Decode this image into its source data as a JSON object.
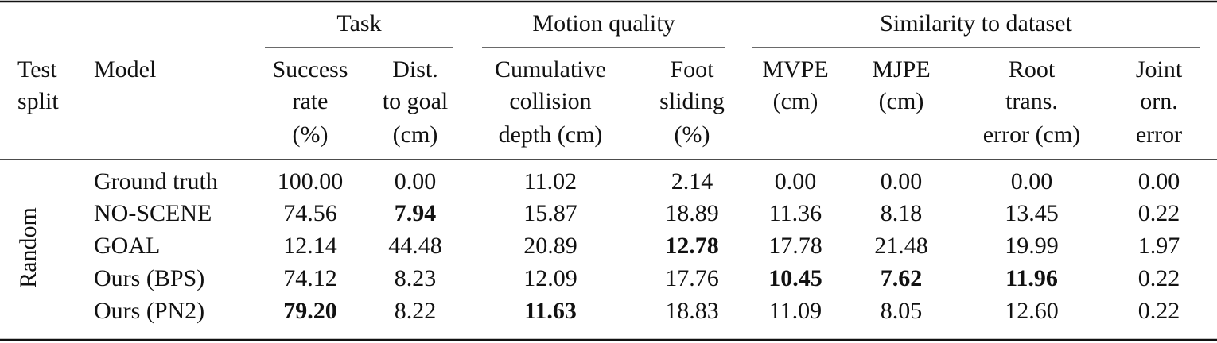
{
  "table": {
    "stub_columns": [
      {
        "lines": [
          "Test",
          "split"
        ]
      },
      {
        "lines": [
          "Model"
        ]
      }
    ],
    "groups": [
      {
        "label": "Task",
        "columns": [
          {
            "lines": [
              "Success",
              "rate",
              "(%)"
            ]
          },
          {
            "lines": [
              "Dist.",
              "to goal",
              "(cm)"
            ]
          }
        ]
      },
      {
        "label": "Motion quality",
        "columns": [
          {
            "lines": [
              "Cumulative",
              "collision",
              "depth (cm)"
            ]
          },
          {
            "lines": [
              "Foot",
              "sliding",
              "(%)"
            ]
          }
        ]
      },
      {
        "label": "Similarity to dataset",
        "columns": [
          {
            "lines": [
              "MVPE",
              "(cm)"
            ]
          },
          {
            "lines": [
              "MJPE",
              "(cm)"
            ]
          },
          {
            "lines": [
              "Root",
              "trans.",
              "error (cm)"
            ]
          },
          {
            "lines": [
              "Joint",
              "orn.",
              "error"
            ]
          }
        ]
      }
    ],
    "split": "Random",
    "rows": [
      {
        "model": "Ground truth",
        "cells": [
          "100.00",
          "0.00",
          "11.02",
          "2.14",
          "0.00",
          "0.00",
          "0.00",
          "0.00"
        ]
      },
      {
        "model": "NO-SCENE",
        "cells": [
          "74.56",
          {
            "text": "7.94",
            "bold": true
          },
          "15.87",
          "18.89",
          "11.36",
          "8.18",
          "13.45",
          "0.22"
        ]
      },
      {
        "model": "GOAL",
        "cells": [
          "12.14",
          "44.48",
          "20.89",
          {
            "text": "12.78",
            "bold": true
          },
          "17.78",
          "21.48",
          "19.99",
          "1.97"
        ]
      },
      {
        "model": "Ours (BPS)",
        "cells": [
          "74.12",
          "8.23",
          "12.09",
          "17.76",
          {
            "text": "10.45",
            "bold": true
          },
          {
            "text": "7.62",
            "bold": true
          },
          {
            "text": "11.96",
            "bold": true
          },
          "0.22"
        ]
      },
      {
        "model": "Ours (PN2)",
        "cells": [
          {
            "text": "79.20",
            "bold": true
          },
          "8.22",
          {
            "text": "11.63",
            "bold": true
          },
          "18.83",
          "11.09",
          "8.05",
          "12.60",
          "0.22"
        ]
      }
    ]
  }
}
